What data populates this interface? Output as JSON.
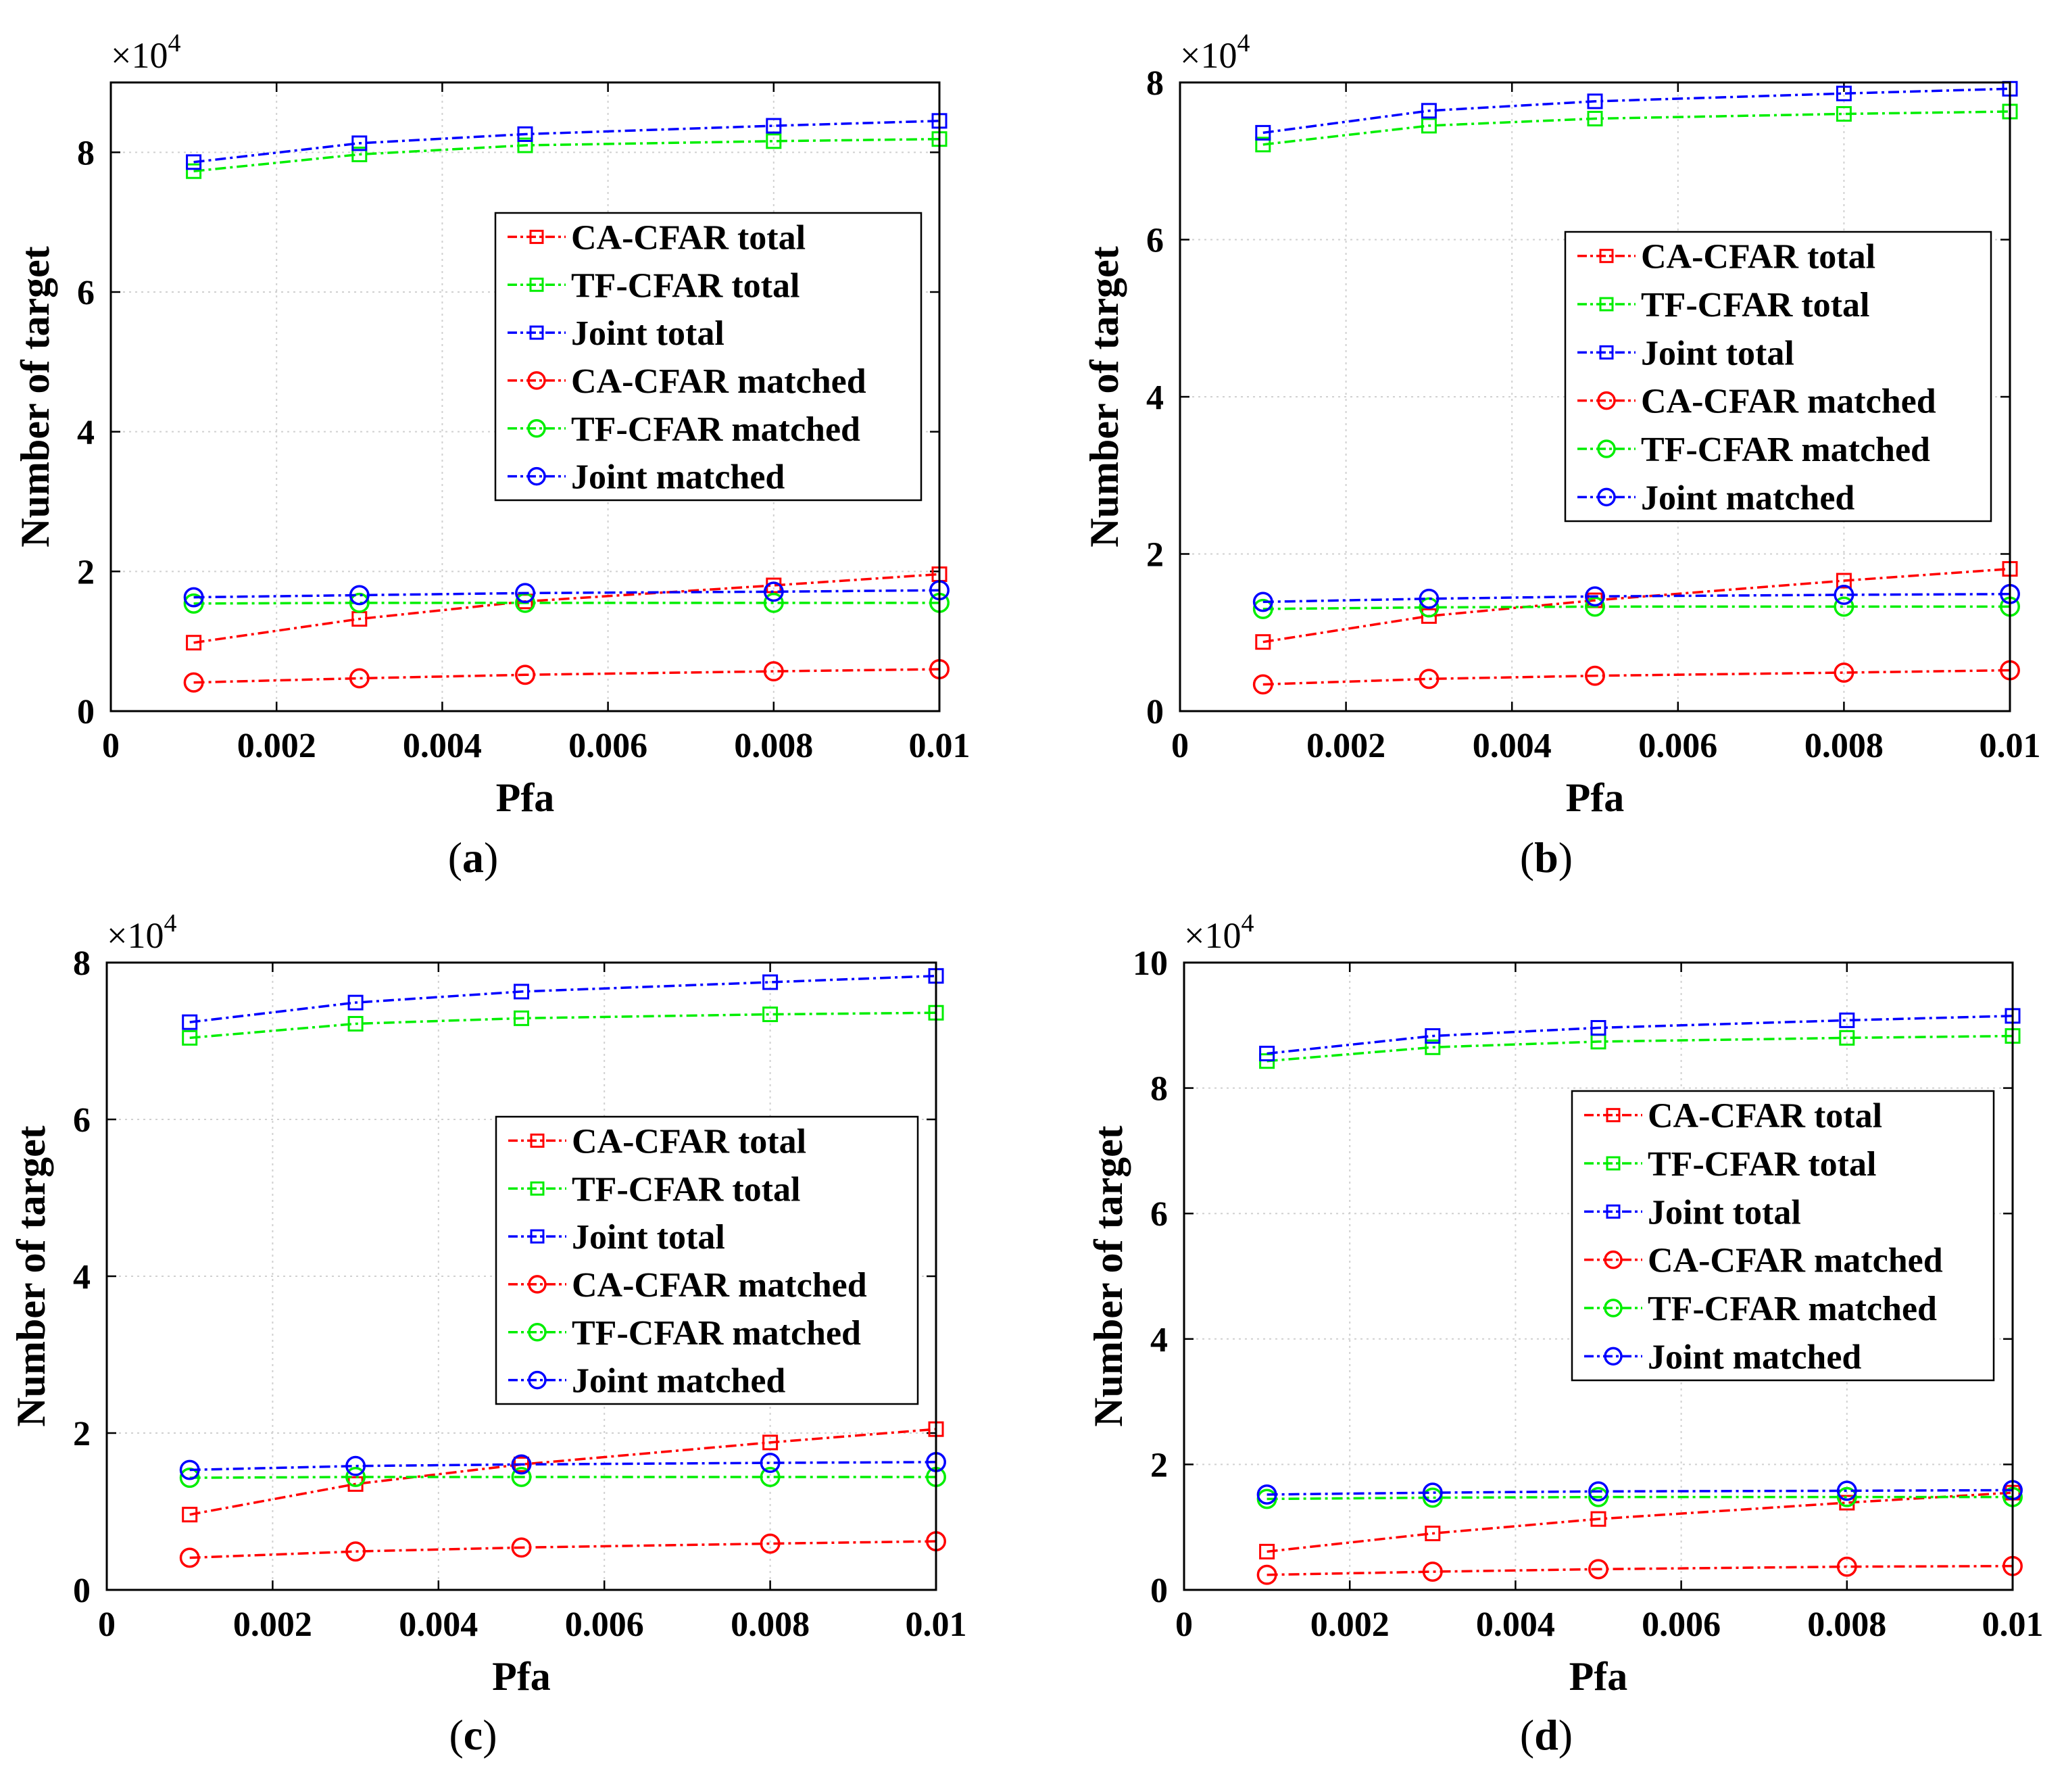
{
  "figure": {
    "colors": {
      "ca": "#ff0000",
      "tf": "#00ee00",
      "joint": "#0000ff"
    }
  },
  "chart_data": [
    {
      "type": "line",
      "label": "(a)",
      "panel_letter": "a",
      "xlabel": "Pfa",
      "ylabel": "Number of target",
      "y_multiplier": "×10",
      "y_multiplier_exp": "4",
      "xlim": [
        0,
        0.01
      ],
      "ylim": [
        0,
        9
      ],
      "xticks": [
        0,
        0.002,
        0.004,
        0.006,
        0.008,
        0.01
      ],
      "xtick_labels": [
        "0",
        "0.002",
        "0.004",
        "0.006",
        "0.008",
        "0.01"
      ],
      "yticks": [
        0,
        2,
        4,
        6,
        8
      ],
      "ytick_labels": [
        "0",
        "2",
        "4",
        "6",
        "8"
      ],
      "grid": true,
      "legend_position": "upper-right",
      "x": [
        0.001,
        0.003,
        0.005,
        0.008,
        0.01
      ],
      "series": [
        {
          "name": "CA-CFAR total",
          "color": "ca",
          "marker": "square",
          "values": [
            0.98,
            1.32,
            1.57,
            1.8,
            1.96
          ]
        },
        {
          "name": "TF-CFAR total",
          "color": "tf",
          "marker": "square",
          "values": [
            7.73,
            7.97,
            8.1,
            8.16,
            8.19
          ]
        },
        {
          "name": "Joint total",
          "color": "joint",
          "marker": "square",
          "values": [
            7.86,
            8.13,
            8.26,
            8.38,
            8.45
          ]
        },
        {
          "name": "CA-CFAR matched",
          "color": "ca",
          "marker": "circle",
          "values": [
            0.41,
            0.47,
            0.52,
            0.57,
            0.6
          ]
        },
        {
          "name": "TF-CFAR matched",
          "color": "tf",
          "marker": "circle",
          "values": [
            1.54,
            1.55,
            1.55,
            1.55,
            1.55
          ]
        },
        {
          "name": "Joint matched",
          "color": "joint",
          "marker": "circle",
          "values": [
            1.63,
            1.66,
            1.69,
            1.71,
            1.73
          ]
        }
      ]
    },
    {
      "type": "line",
      "label": "(b)",
      "panel_letter": "b",
      "xlabel": "Pfa",
      "ylabel": "Number of target",
      "y_multiplier": "×10",
      "y_multiplier_exp": "4",
      "xlim": [
        0,
        0.01
      ],
      "ylim": [
        0,
        8
      ],
      "xticks": [
        0,
        0.002,
        0.004,
        0.006,
        0.008,
        0.01
      ],
      "xtick_labels": [
        "0",
        "0.002",
        "0.004",
        "0.006",
        "0.008",
        "0.01"
      ],
      "yticks": [
        0,
        2,
        4,
        6,
        8
      ],
      "ytick_labels": [
        "0",
        "2",
        "4",
        "6",
        "8"
      ],
      "grid": true,
      "legend_position": "upper-right",
      "x": [
        0.001,
        0.003,
        0.005,
        0.008,
        0.01
      ],
      "series": [
        {
          "name": "CA-CFAR total",
          "color": "ca",
          "marker": "square",
          "values": [
            0.88,
            1.21,
            1.41,
            1.66,
            1.81
          ]
        },
        {
          "name": "TF-CFAR total",
          "color": "tf",
          "marker": "square",
          "values": [
            7.21,
            7.45,
            7.54,
            7.6,
            7.63
          ]
        },
        {
          "name": "Joint total",
          "color": "joint",
          "marker": "square",
          "values": [
            7.36,
            7.64,
            7.76,
            7.86,
            7.92
          ]
        },
        {
          "name": "CA-CFAR matched",
          "color": "ca",
          "marker": "circle",
          "values": [
            0.34,
            0.41,
            0.45,
            0.49,
            0.52
          ]
        },
        {
          "name": "TF-CFAR matched",
          "color": "tf",
          "marker": "circle",
          "values": [
            1.3,
            1.32,
            1.33,
            1.33,
            1.33
          ]
        },
        {
          "name": "Joint matched",
          "color": "joint",
          "marker": "circle",
          "values": [
            1.39,
            1.43,
            1.46,
            1.48,
            1.49
          ]
        }
      ]
    },
    {
      "type": "line",
      "label": "(c)",
      "panel_letter": "c",
      "xlabel": "Pfa",
      "ylabel": "Number of target",
      "y_multiplier": "×10",
      "y_multiplier_exp": "4",
      "xlim": [
        0,
        0.01
      ],
      "ylim": [
        0,
        8
      ],
      "xticks": [
        0,
        0.002,
        0.004,
        0.006,
        0.008,
        0.01
      ],
      "xtick_labels": [
        "0",
        "0.002",
        "0.004",
        "0.006",
        "0.008",
        "0.01"
      ],
      "yticks": [
        0,
        2,
        4,
        6,
        8
      ],
      "ytick_labels": [
        "0",
        "2",
        "4",
        "6",
        "8"
      ],
      "grid": true,
      "legend_position": "upper-right",
      "x": [
        0.001,
        0.003,
        0.005,
        0.008,
        0.01
      ],
      "series": [
        {
          "name": "CA-CFAR total",
          "color": "ca",
          "marker": "square",
          "values": [
            0.96,
            1.35,
            1.6,
            1.88,
            2.05
          ]
        },
        {
          "name": "TF-CFAR total",
          "color": "tf",
          "marker": "square",
          "values": [
            7.04,
            7.22,
            7.29,
            7.34,
            7.36
          ]
        },
        {
          "name": "Joint total",
          "color": "joint",
          "marker": "square",
          "values": [
            7.24,
            7.49,
            7.63,
            7.75,
            7.83
          ]
        },
        {
          "name": "CA-CFAR matched",
          "color": "ca",
          "marker": "circle",
          "values": [
            0.41,
            0.49,
            0.54,
            0.59,
            0.62
          ]
        },
        {
          "name": "TF-CFAR matched",
          "color": "tf",
          "marker": "circle",
          "values": [
            1.43,
            1.44,
            1.44,
            1.44,
            1.44
          ]
        },
        {
          "name": "Joint matched",
          "color": "joint",
          "marker": "circle",
          "values": [
            1.53,
            1.58,
            1.6,
            1.62,
            1.63
          ]
        }
      ]
    },
    {
      "type": "line",
      "label": "(d)",
      "panel_letter": "d",
      "xlabel": "Pfa",
      "ylabel": "Number of target",
      "y_multiplier": "×10",
      "y_multiplier_exp": "4",
      "xlim": [
        0,
        0.01
      ],
      "ylim": [
        0,
        10
      ],
      "xticks": [
        0,
        0.002,
        0.004,
        0.006,
        0.008,
        0.01
      ],
      "xtick_labels": [
        "0",
        "0.002",
        "0.004",
        "0.006",
        "0.008",
        "0.01"
      ],
      "yticks": [
        0,
        2,
        4,
        6,
        8,
        10
      ],
      "ytick_labels": [
        "0",
        "2",
        "4",
        "6",
        "8",
        "10"
      ],
      "grid": true,
      "legend_position": "upper-right",
      "x": [
        0.001,
        0.003,
        0.005,
        0.008,
        0.01
      ],
      "series": [
        {
          "name": "CA-CFAR total",
          "color": "ca",
          "marker": "square",
          "values": [
            0.61,
            0.9,
            1.13,
            1.39,
            1.55
          ]
        },
        {
          "name": "TF-CFAR total",
          "color": "tf",
          "marker": "square",
          "values": [
            8.43,
            8.65,
            8.74,
            8.8,
            8.83
          ]
        },
        {
          "name": "Joint total",
          "color": "joint",
          "marker": "square",
          "values": [
            8.55,
            8.83,
            8.96,
            9.08,
            9.15
          ]
        },
        {
          "name": "CA-CFAR matched",
          "color": "ca",
          "marker": "circle",
          "values": [
            0.24,
            0.29,
            0.33,
            0.37,
            0.38
          ]
        },
        {
          "name": "TF-CFAR matched",
          "color": "tf",
          "marker": "circle",
          "values": [
            1.45,
            1.47,
            1.48,
            1.48,
            1.48
          ]
        },
        {
          "name": "Joint matched",
          "color": "joint",
          "marker": "circle",
          "values": [
            1.52,
            1.55,
            1.57,
            1.58,
            1.59
          ]
        }
      ]
    }
  ]
}
